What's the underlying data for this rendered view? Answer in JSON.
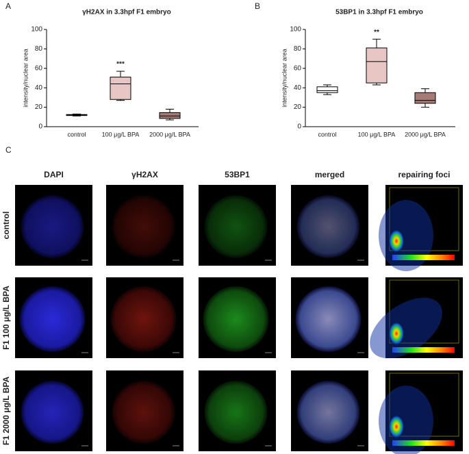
{
  "chart_data": [
    {
      "type": "box",
      "panel": "A",
      "title": "γH2AX in 3.3hpf F1 embryo",
      "y_label": "intensity/nuclear area",
      "categories": [
        "control",
        "100 μg/L BPA",
        "2000 μg/L BPA"
      ],
      "colors": [
        "#ffffff",
        "#e8c6c4",
        "#a47b76"
      ],
      "min": [
        11,
        27,
        7
      ],
      "q1": [
        11.5,
        28,
        8.5
      ],
      "median": [
        12,
        44,
        11
      ],
      "q3": [
        12.5,
        51,
        14.5
      ],
      "max": [
        13,
        57,
        18
      ],
      "annotations": [
        null,
        "***",
        null
      ],
      "ylim": [
        0,
        100
      ],
      "yticks": [
        0,
        20,
        40,
        60,
        80,
        100
      ]
    },
    {
      "type": "box",
      "panel": "B",
      "title": "53BP1 in 3.3hpf F1 embryo",
      "y_label": "intensity/nuclear area",
      "categories": [
        "control",
        "100 μg/L BPA",
        "2000 μg/L BPA"
      ],
      "colors": [
        "#ffffff",
        "#e8c6c4",
        "#a47b76"
      ],
      "min": [
        33,
        43,
        20
      ],
      "q1": [
        35,
        45,
        24
      ],
      "median": [
        37,
        67,
        27
      ],
      "q3": [
        41,
        81,
        35
      ],
      "max": [
        43,
        90,
        39
      ],
      "annotations": [
        null,
        "**",
        null
      ],
      "ylim": [
        0,
        100
      ],
      "yticks": [
        0,
        20,
        40,
        60,
        80,
        100
      ]
    }
  ],
  "panel_c": {
    "label": "C",
    "columns": [
      "DAPI",
      "γH2AX",
      "53BP1",
      "merged",
      "repairing foci"
    ],
    "rows": [
      "control",
      "F1 100 μg/L BPA",
      "F1 2000 μg/L BPA"
    ]
  }
}
